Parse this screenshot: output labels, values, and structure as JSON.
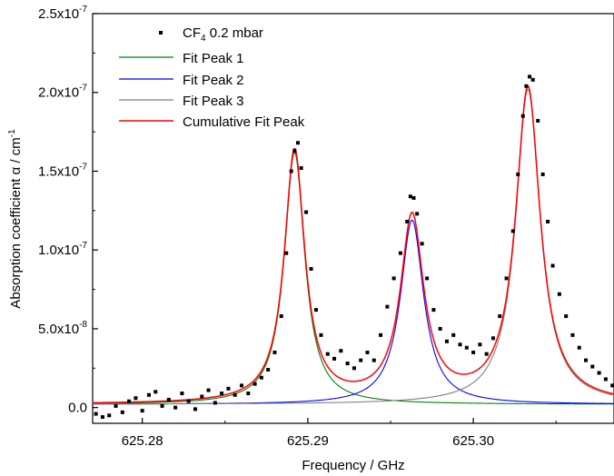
{
  "chart_data": {
    "type": "line",
    "xlabel": "Frequency / GHz",
    "ylabel_prefix": "Absorption coefficient ",
    "ylabel_symbol": "α",
    "ylabel_suffix": " / cm",
    "ylabel_sup": "-1",
    "xlim": [
      625.277,
      625.3085
    ],
    "ylim": [
      -1e-08,
      2.5e-07
    ],
    "x_ticks": [
      {
        "value": 625.28,
        "label": "625.28"
      },
      {
        "value": 625.29,
        "label": "625.29"
      },
      {
        "value": 625.3,
        "label": "625.30"
      }
    ],
    "y_ticks": [
      {
        "value": 0,
        "mant": "0.0",
        "exp": ""
      },
      {
        "value": 5e-08,
        "mant": "5.0x10",
        "exp": "-8"
      },
      {
        "value": 1e-07,
        "mant": "1.0x10",
        "exp": "-7"
      },
      {
        "value": 1.5e-07,
        "mant": "1.5x10",
        "exp": "-7"
      },
      {
        "value": 2e-07,
        "mant": "2.0x10",
        "exp": "-7"
      },
      {
        "value": 2.5e-07,
        "mant": "2.5x10",
        "exp": "-7"
      }
    ],
    "legend": {
      "position": "top-left",
      "data_label_main": "CF",
      "data_label_sub": "4",
      "data_label_rest": " 0.2 mbar",
      "entries": [
        {
          "label": "Fit Peak 1",
          "color": "#008000"
        },
        {
          "label": "Fit Peak 2",
          "color": "#0000ff"
        },
        {
          "label": "Fit Peak 3",
          "color": "#808080"
        },
        {
          "label": "Cumulative Fit Peak",
          "color": "#ff0000"
        }
      ]
    },
    "peaks": [
      {
        "center": 625.2892,
        "amplitude": 1.6e-07,
        "hwhm": 0.00075
      },
      {
        "center": 625.2963,
        "amplitude": 1.17e-07,
        "hwhm": 0.00085
      },
      {
        "center": 625.3033,
        "amplitude": 2e-07,
        "hwhm": 0.0009
      }
    ],
    "baseline": 2e-09,
    "data_series": {
      "name": "CF4 0.2 mbar",
      "color": "#000000",
      "points": [
        [
          625.2772,
          -4e-09
        ],
        [
          625.2776,
          -6e-09
        ],
        [
          625.278,
          -5e-09
        ],
        [
          625.2784,
          1e-09
        ],
        [
          625.2788,
          -3e-09
        ],
        [
          625.2792,
          4e-09
        ],
        [
          625.2796,
          6e-09
        ],
        [
          625.28,
          -2e-09
        ],
        [
          625.2804,
          8e-09
        ],
        [
          625.2808,
          1e-08
        ],
        [
          625.2812,
          1e-09
        ],
        [
          625.2816,
          5e-09
        ],
        [
          625.282,
          0
        ],
        [
          625.2824,
          9e-09
        ],
        [
          625.2828,
          4e-09
        ],
        [
          625.2832,
          -1e-09
        ],
        [
          625.2836,
          7e-09
        ],
        [
          625.284,
          1.1e-08
        ],
        [
          625.2844,
          3e-09
        ],
        [
          625.2848,
          9e-09
        ],
        [
          625.2852,
          1.2e-08
        ],
        [
          625.2856,
          8e-09
        ],
        [
          625.286,
          1.4e-08
        ],
        [
          625.2864,
          9e-09
        ],
        [
          625.2868,
          1.5e-08
        ],
        [
          625.2872,
          1.9e-08
        ],
        [
          625.2876,
          2.4e-08
        ],
        [
          625.288,
          3.5e-08
        ],
        [
          625.2884,
          5.8e-08
        ],
        [
          625.2887,
          9.8e-08
        ],
        [
          625.289,
          1.5e-07
        ],
        [
          625.2892,
          1.63e-07
        ],
        [
          625.2894,
          1.68e-07
        ],
        [
          625.2896,
          1.52e-07
        ],
        [
          625.2899,
          1.24e-07
        ],
        [
          625.2902,
          8.8e-08
        ],
        [
          625.2905,
          6.2e-08
        ],
        [
          625.2908,
          4.6e-08
        ],
        [
          625.2912,
          3.4e-08
        ],
        [
          625.2916,
          3.1e-08
        ],
        [
          625.292,
          3.6e-08
        ],
        [
          625.2924,
          2.8e-08
        ],
        [
          625.2928,
          2.5e-08
        ],
        [
          625.2932,
          3e-08
        ],
        [
          625.2936,
          3.5e-08
        ],
        [
          625.294,
          3e-08
        ],
        [
          625.2944,
          4.6e-08
        ],
        [
          625.2948,
          6.4e-08
        ],
        [
          625.2952,
          8.2e-08
        ],
        [
          625.2956,
          9.8e-08
        ],
        [
          625.296,
          1.18e-07
        ],
        [
          625.2962,
          1.34e-07
        ],
        [
          625.2964,
          1.33e-07
        ],
        [
          625.2966,
          1.23e-07
        ],
        [
          625.2969,
          1.04e-07
        ],
        [
          625.2972,
          8.2e-08
        ],
        [
          625.2976,
          6.2e-08
        ],
        [
          625.298,
          5e-08
        ],
        [
          625.2984,
          4.2e-08
        ],
        [
          625.2988,
          4.6e-08
        ],
        [
          625.2992,
          4e-08
        ],
        [
          625.2996,
          3.8e-08
        ],
        [
          625.3,
          3.5e-08
        ],
        [
          625.3004,
          4e-08
        ],
        [
          625.3008,
          3.4e-08
        ],
        [
          625.3012,
          4.4e-08
        ],
        [
          625.3016,
          5.8e-08
        ],
        [
          625.302,
          8.2e-08
        ],
        [
          625.3024,
          1.12e-07
        ],
        [
          625.3027,
          1.48e-07
        ],
        [
          625.303,
          1.85e-07
        ],
        [
          625.3032,
          2.04e-07
        ],
        [
          625.3034,
          2.1e-07
        ],
        [
          625.3036,
          2.08e-07
        ],
        [
          625.3039,
          1.82e-07
        ],
        [
          625.3042,
          1.48e-07
        ],
        [
          625.3045,
          1.18e-07
        ],
        [
          625.3048,
          9e-08
        ],
        [
          625.3052,
          7.2e-08
        ],
        [
          625.3056,
          5.8e-08
        ],
        [
          625.306,
          4.6e-08
        ],
        [
          625.3064,
          3.8e-08
        ],
        [
          625.3068,
          3e-08
        ],
        [
          625.3072,
          2.6e-08
        ],
        [
          625.3076,
          2.2e-08
        ],
        [
          625.308,
          1.8e-08
        ],
        [
          625.3084,
          1.4e-08
        ]
      ]
    }
  }
}
